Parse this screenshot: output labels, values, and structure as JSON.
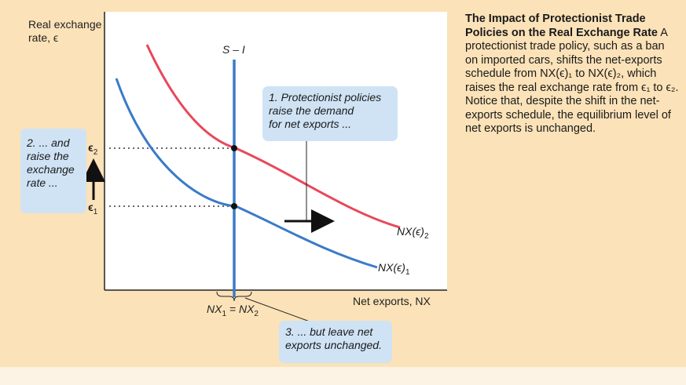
{
  "figure": {
    "y_axis_label_line1": "Real exchange",
    "y_axis_label_line2": "rate, ϵ",
    "x_axis_label": "Net exports, NX",
    "s_minus_i_label": "S – I",
    "tick_eps2": "ϵ",
    "tick_eps2_sub": "2",
    "tick_eps1": "ϵ",
    "tick_eps1_sub": "1",
    "nx_equal_label": "NX",
    "nx_equal_sub1": "1",
    "nx_equal_mid": " = NX",
    "nx_equal_sub2": "2",
    "curve1_label": "NX(ϵ)",
    "curve1_sub": "1",
    "curve2_label": "NX(ϵ)",
    "curve2_sub": "2",
    "colors": {
      "curve1": "#3a7bc8",
      "curve2": "#e8485b",
      "s_minus_i": "#3a7bc8",
      "callout": "#cfe3f5",
      "panel": "#fbe2b8"
    }
  },
  "callouts": {
    "c1": [
      "1. Protectionist policies",
      "raise the demand",
      "for net exports ..."
    ],
    "c2": [
      "2. ... and",
      "raise the",
      "exchange",
      "rate ..."
    ],
    "c3": [
      "3. ... but leave net",
      "exports unchanged."
    ]
  },
  "caption": {
    "title": "The Impact of Protectionist Trade Policies on the Real Exchange Rate",
    "body": " A protectionist trade policy, such as a ban on imported cars, shifts the net-exports schedule from NX(ϵ)₁ to NX(ϵ)₂, which raises the real exchange rate from ϵ₁ to ϵ₂. Notice that, despite the shift in the net-exports schedule, the equilibrium level of net exports is unchanged."
  }
}
